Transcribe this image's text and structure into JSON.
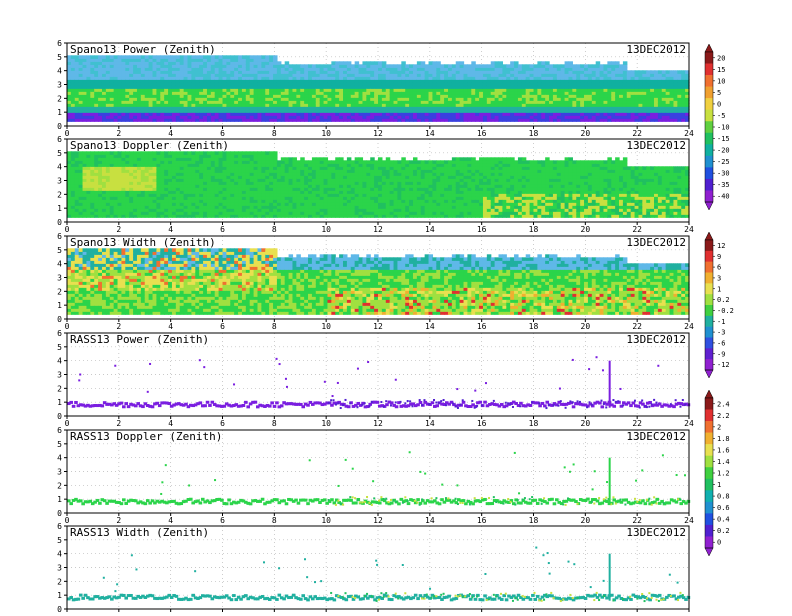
{
  "date": "13DEC2012",
  "panels": [
    {
      "title": "Spano13 Power (Zenith)",
      "date": "13DEC2012",
      "kind": "power",
      "colorbar_group": 0
    },
    {
      "title": "Spano13 Doppler (Zenith)",
      "date": "13DEC2012",
      "kind": "doppler",
      "colorbar_group": 0
    },
    {
      "title": "Spano13 Width (Zenith)",
      "date": "13DEC2012",
      "kind": "width",
      "colorbar_group": 1
    },
    {
      "title": "RASS13 Power (Zenith)",
      "date": "13DEC2012",
      "kind": "rass_power",
      "colorbar_group": 1
    },
    {
      "title": "RASS13 Doppler (Zenith)",
      "date": "13DEC2012",
      "kind": "rass_doppler",
      "colorbar_group": 2
    },
    {
      "title": "RASS13 Width (Zenith)",
      "date": "13DEC2012",
      "kind": "rass_width",
      "colorbar_group": 2
    }
  ],
  "colorbars": [
    {
      "labels": [
        "20",
        "15",
        "10",
        "5",
        "0",
        "-5",
        "-10",
        "-15",
        "-20",
        "-25",
        "-30",
        "-35",
        "-40"
      ]
    },
    {
      "labels": [
        "12",
        "9",
        "6",
        "3",
        "1",
        "0.2",
        "-0.2",
        "-1",
        "-3",
        "-6",
        "-9",
        "-12"
      ]
    },
    {
      "labels": [
        "2.4",
        "2.2",
        "2",
        "1.8",
        "1.6",
        "1.4",
        "1.2",
        "1",
        "0.8",
        "0.6",
        "0.4",
        "0.2",
        "0"
      ]
    }
  ],
  "colors": {
    "power_band": "#2bd44a",
    "sky_blue": "#5fb8e8",
    "purple": "#7a1ee0",
    "yellow": "#e8e050",
    "red": "#e03030"
  },
  "chart_data": {
    "type": "heatmap",
    "x_ticks": [
      "0",
      "2",
      "4",
      "6",
      "8",
      "10",
      "12",
      "14",
      "16",
      "18",
      "20",
      "22",
      "24"
    ],
    "y_ticks": [
      "0",
      "1",
      "2",
      "3",
      "4",
      "5",
      "6"
    ],
    "xlim": [
      0,
      24
    ],
    "ylim": [
      0,
      6
    ],
    "grid": true,
    "panels": [
      "Spano13 Power (Zenith)",
      "Spano13 Doppler (Zenith)",
      "Spano13 Width (Zenith)",
      "RASS13 Power (Zenith)",
      "RASS13 Doppler (Zenith)",
      "RASS13 Width (Zenith)"
    ]
  }
}
